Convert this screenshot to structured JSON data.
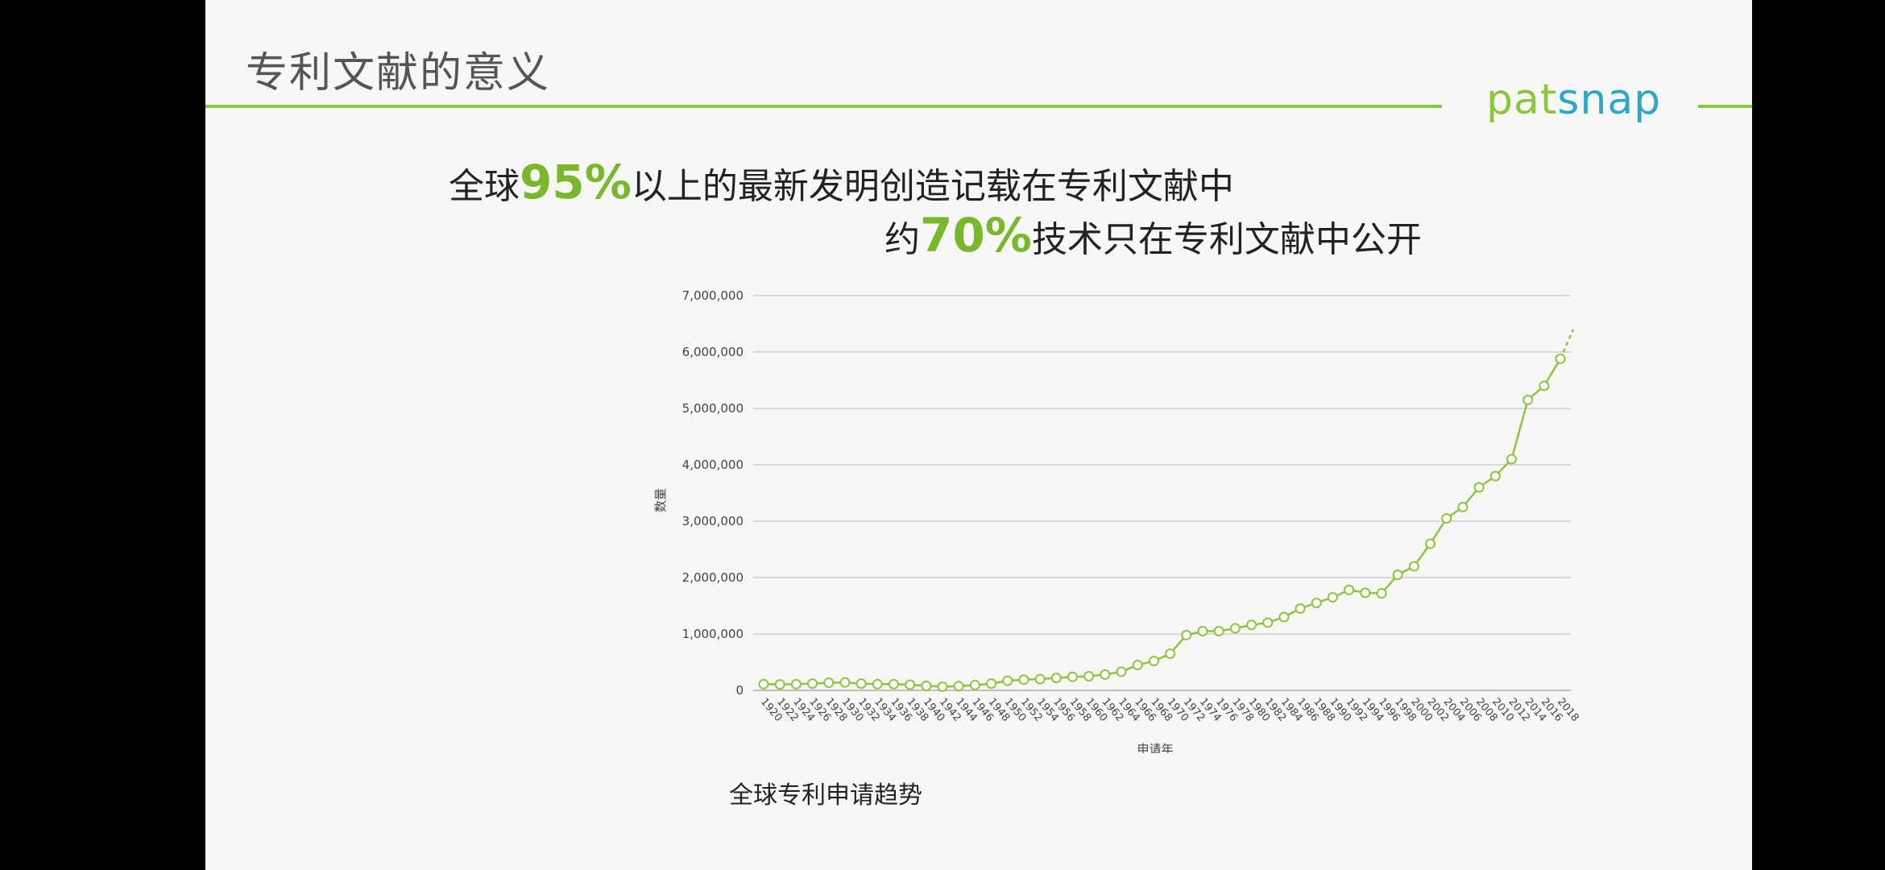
{
  "slide": {
    "title": "专利文献的意义",
    "brand": {
      "part1": "pat",
      "part2": "snap"
    },
    "headline1": {
      "pre": "全球",
      "pct": "95%",
      "post": "以上的最新发明创造记载在专利文献中"
    },
    "headline2": {
      "pre": "约",
      "pct": "70%",
      "post": "技术只在专利文献中公开"
    },
    "caption": "全球专利申请趋势"
  },
  "colors": {
    "accent": "#8cc63f",
    "brand_blue": "#2aa7c9",
    "line": "#8cc63f",
    "grid": "#d9d9d9"
  },
  "chart_data": {
    "type": "line",
    "title": "",
    "xlabel": "申请年",
    "ylabel": "数量",
    "ylim": [
      0,
      7000000
    ],
    "yticks": [
      0,
      1000000,
      2000000,
      3000000,
      4000000,
      5000000,
      6000000,
      7000000
    ],
    "ytick_labels": [
      "0",
      "1,000,000",
      "2,000,000",
      "3,000,000",
      "4,000,000",
      "5,000,000",
      "6,000,000",
      "7,000,000"
    ],
    "grid": true,
    "x": [
      1920,
      1922,
      1924,
      1926,
      1928,
      1930,
      1932,
      1934,
      1936,
      1938,
      1940,
      1942,
      1944,
      1946,
      1948,
      1950,
      1952,
      1954,
      1956,
      1958,
      1960,
      1962,
      1964,
      1966,
      1968,
      1970,
      1972,
      1974,
      1976,
      1978,
      1980,
      1982,
      1984,
      1986,
      1988,
      1990,
      1992,
      1994,
      1996,
      1998,
      2000,
      2002,
      2004,
      2006,
      2008,
      2010,
      2012,
      2014,
      2016,
      2018
    ],
    "series": [
      {
        "name": "",
        "values": [
          110000,
          105000,
          110000,
          120000,
          135000,
          140000,
          120000,
          110000,
          110000,
          100000,
          80000,
          65000,
          75000,
          95000,
          120000,
          170000,
          190000,
          200000,
          220000,
          240000,
          250000,
          280000,
          330000,
          450000,
          520000,
          650000,
          980000,
          1050000,
          1050000,
          1100000,
          1160000,
          1200000,
          1300000,
          1450000,
          1550000,
          1650000,
          1780000,
          1730000,
          1720000,
          2050000,
          2200000,
          2600000,
          3050000,
          3250000,
          3600000,
          3800000,
          4100000,
          5150000,
          5400000,
          5880000
        ],
        "projected": [
          5880000,
          6400000
        ]
      }
    ]
  }
}
